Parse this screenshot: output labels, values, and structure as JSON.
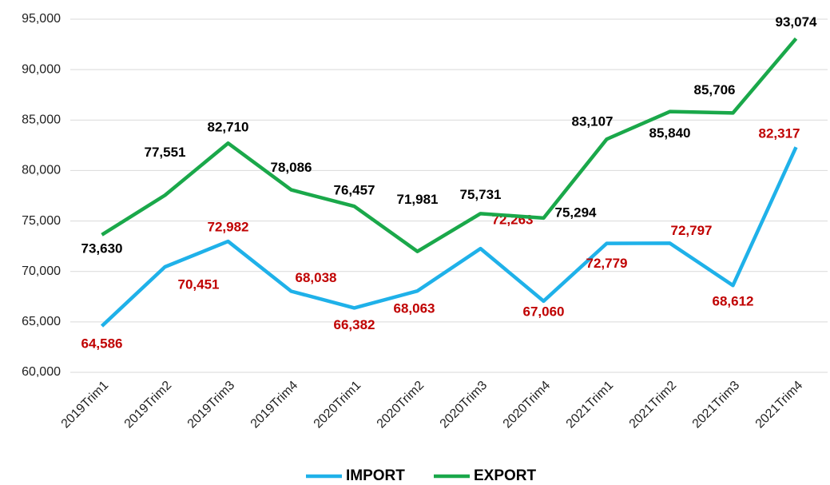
{
  "chart_data": {
    "type": "line",
    "categories": [
      "2019Trim1",
      "2019Trim2",
      "2019Trim3",
      "2019Trim4",
      "2020Trim1",
      "2020Trim2",
      "2020Trim3",
      "2020Trim4",
      "2021Trim1",
      "2021Trim2",
      "2021Trim3",
      "2021Trim4"
    ],
    "series": [
      {
        "name": "IMPORT",
        "color": "#1fb1e9",
        "label_color": "#c00000",
        "values": [
          64586,
          70451,
          72982,
          68038,
          66382,
          68063,
          72263,
          67060,
          72779,
          72797,
          68612,
          82317
        ],
        "value_labels": [
          "64,586",
          "70,451",
          "72,982",
          "68,038",
          "66,382",
          "68,063",
          "72,263",
          "67,060",
          "72,779",
          "72,797",
          "68,612",
          "82,317"
        ]
      },
      {
        "name": "EXPORT",
        "color": "#1aa84a",
        "label_color": "#000000",
        "values": [
          73630,
          77551,
          82710,
          78086,
          76457,
          71981,
          75731,
          75294,
          83107,
          85840,
          85706,
          93074
        ],
        "value_labels": [
          "73,630",
          "77,551",
          "82,710",
          "78,086",
          "76,457",
          "71,981",
          "75,731",
          "75,294",
          "83,107",
          "85,840",
          "85,706",
          "93,074"
        ]
      }
    ],
    "ylim": [
      60000,
      95000
    ],
    "yticks": [
      {
        "value": 60000,
        "label": "60,000"
      },
      {
        "value": 65000,
        "label": "65,000"
      },
      {
        "value": 70000,
        "label": "70,000"
      },
      {
        "value": 75000,
        "label": "75,000"
      },
      {
        "value": 80000,
        "label": "80,000"
      },
      {
        "value": 85000,
        "label": "85,000"
      },
      {
        "value": 90000,
        "label": "90,000"
      },
      {
        "value": 95000,
        "label": "95,000"
      }
    ],
    "grid": true,
    "legend": "bottom"
  }
}
